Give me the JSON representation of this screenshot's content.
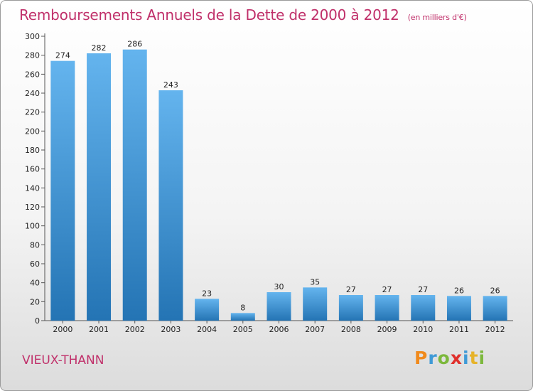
{
  "header": {
    "title": "Remboursements Annuels de la Dette de 2000 à 2012",
    "subtitle": "(en milliers d'€)"
  },
  "footer": {
    "commune": "VIEUX-THANN",
    "logo_letters": [
      "P",
      "r",
      "o",
      "x",
      "i",
      "t",
      "i"
    ]
  },
  "colors": {
    "title": "#c0306a",
    "bar_light": "#64b4ee",
    "bar_dark": "#2474b4",
    "logo": [
      "#f08a1c",
      "#3f9ad6",
      "#7cb83c",
      "#e0302c",
      "#3f9ad6",
      "#e6b32a",
      "#7cb83c"
    ]
  },
  "chart_data": {
    "type": "bar",
    "title": "Remboursements Annuels de la Dette de 2000 à 2012",
    "subtitle": "(en milliers d'€)",
    "categories": [
      "2000",
      "2001",
      "2002",
      "2003",
      "2004",
      "2005",
      "2006",
      "2007",
      "2008",
      "2009",
      "2010",
      "2011",
      "2012"
    ],
    "values": [
      274,
      282,
      286,
      243,
      23,
      8,
      30,
      35,
      27,
      27,
      27,
      26,
      26
    ],
    "yticks": [
      0,
      20,
      40,
      60,
      80,
      100,
      120,
      140,
      160,
      180,
      200,
      220,
      240,
      260,
      280,
      300
    ],
    "ylim": [
      0,
      300
    ],
    "grid": false,
    "data_labels": true
  }
}
